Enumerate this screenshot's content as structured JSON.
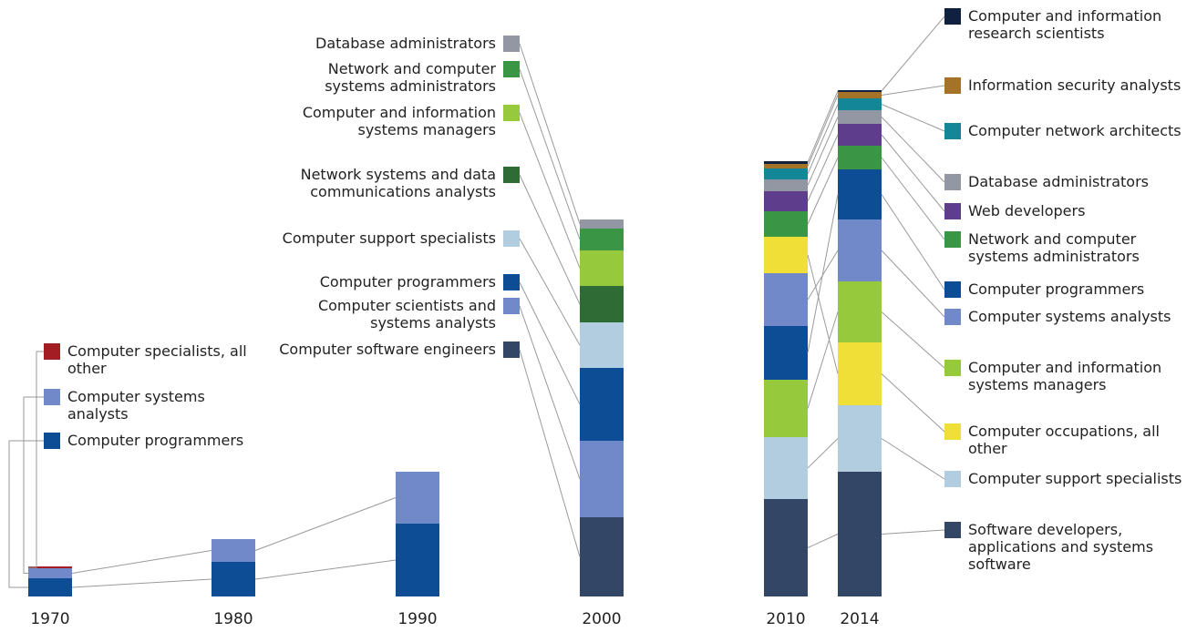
{
  "chart_data": {
    "type": "stacked_bar",
    "categories": [
      "1970",
      "1980",
      "1990",
      "2000",
      "2010",
      "2014"
    ],
    "stacks": [
      [
        {
          "name": "Computer programmers",
          "color": "#0d4d95",
          "value": 20
        },
        {
          "name": "Computer systems analysts",
          "color": "#7189c8",
          "value": 11
        },
        {
          "name": "Computer specialists, all other",
          "color": "#a31e24",
          "value": 2
        }
      ],
      [
        {
          "name": "Computer programmers",
          "color": "#0d4d95",
          "value": 38
        },
        {
          "name": "Computer systems analysts",
          "color": "#7189c8",
          "value": 25
        }
      ],
      [
        {
          "name": "Computer programmers",
          "color": "#0d4d95",
          "value": 80
        },
        {
          "name": "Computer systems analysts",
          "color": "#7189c8",
          "value": 57
        }
      ],
      [
        {
          "name": "Computer software engineers",
          "color": "#344665",
          "value": 87
        },
        {
          "name": "Computer scientists and systems analysts",
          "color": "#7189c8",
          "value": 84
        },
        {
          "name": "Computer programmers",
          "color": "#0d4d95",
          "value": 80
        },
        {
          "name": "Computer support specialists",
          "color": "#b3cde0",
          "value": 50
        },
        {
          "name": "Network systems and data communications analysts",
          "color": "#2e6b35",
          "value": 40
        },
        {
          "name": "Computer and information systems managers",
          "color": "#97c93d",
          "value": 39
        },
        {
          "name": "Network and computer systems administrators",
          "color": "#3a9645",
          "value": 24
        },
        {
          "name": "Database administrators",
          "color": "#9396a3",
          "value": 10
        }
      ],
      [
        {
          "name": "Software developers, applications and systems software",
          "color": "#344665",
          "value": 107
        },
        {
          "name": "Computer support specialists",
          "color": "#b3cde0",
          "value": 68
        },
        {
          "name": "Computer and information systems managers",
          "color": "#97c93d",
          "value": 63
        },
        {
          "name": "Computer programmers",
          "color": "#0d4d95",
          "value": 59
        },
        {
          "name": "Computer systems analysts",
          "color": "#7189c8",
          "value": 58
        },
        {
          "name": "Computer occupations, all other",
          "color": "#f0df36",
          "value": 40
        },
        {
          "name": "Network and computer systems administrators",
          "color": "#3a9645",
          "value": 28
        },
        {
          "name": "Web developers",
          "color": "#5e3d8d",
          "value": 22
        },
        {
          "name": "Database administrators",
          "color": "#9396a3",
          "value": 13
        },
        {
          "name": "Computer network architects",
          "color": "#138797",
          "value": 12
        },
        {
          "name": "Information security analysts",
          "color": "#a5722a",
          "value": 5
        },
        {
          "name": "Computer and information research scientists",
          "color": "#10203f",
          "value": 3
        }
      ],
      [
        {
          "name": "Software developers, applications and systems software",
          "color": "#344665",
          "value": 137
        },
        {
          "name": "Computer support specialists",
          "color": "#b3cde0",
          "value": 73
        },
        {
          "name": "Computer occupations, all other",
          "color": "#f0df36",
          "value": 69
        },
        {
          "name": "Computer and information systems managers",
          "color": "#97c93d",
          "value": 67
        },
        {
          "name": "Computer systems analysts",
          "color": "#7189c8",
          "value": 68
        },
        {
          "name": "Computer programmers",
          "color": "#0d4d95",
          "value": 55
        },
        {
          "name": "Network and computer systems administrators",
          "color": "#3a9645",
          "value": 26
        },
        {
          "name": "Web developers",
          "color": "#5e3d8d",
          "value": 24
        },
        {
          "name": "Database administrators",
          "color": "#9396a3",
          "value": 15
        },
        {
          "name": "Computer network architects",
          "color": "#138797",
          "value": 13
        },
        {
          "name": "Information security analysts",
          "color": "#a5722a",
          "value": 7
        },
        {
          "name": "Computer and information research scientists",
          "color": "#10203f",
          "value": 2
        }
      ]
    ]
  }
}
